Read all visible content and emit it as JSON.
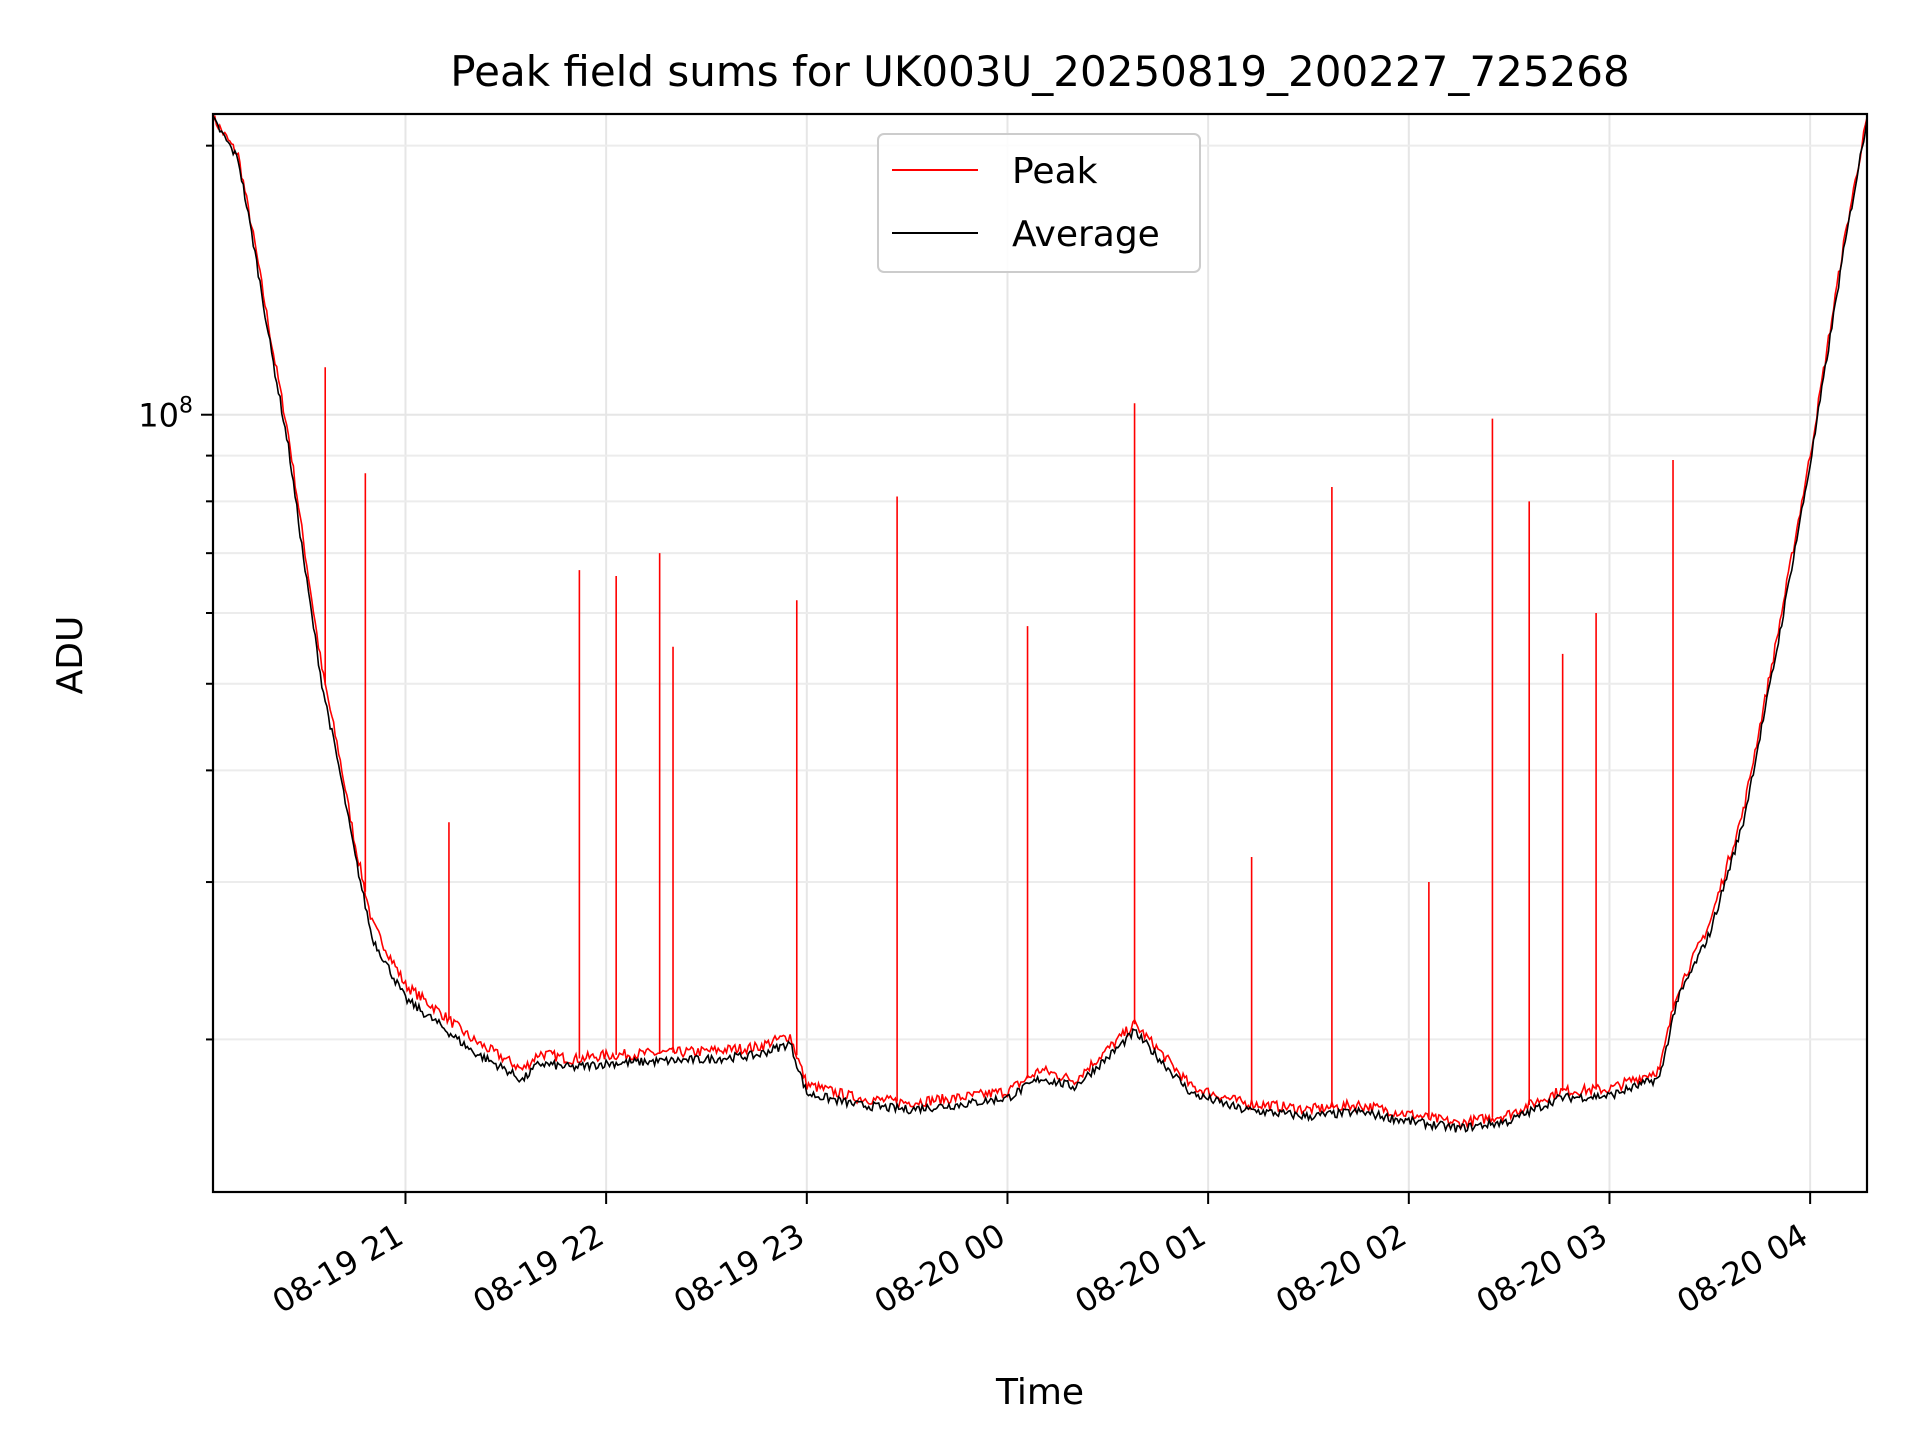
{
  "chart_data": {
    "type": "line",
    "title": "Peak field sums for UK003U_20250819_200227_725268",
    "xlabel": "Time",
    "ylabel": "ADU",
    "yscale": "log",
    "ylim": [
      13500000,
      217000000
    ],
    "xlim": [
      "2025-08-19 20:02:27",
      "2025-08-20 04:17:00"
    ],
    "x_ticks": [
      "08-19 21",
      "08-19 22",
      "08-19 23",
      "08-20 00",
      "08-20 01",
      "08-20 02",
      "08-20 03",
      "08-20 04"
    ],
    "y_ticks": [
      {
        "value": 100000000,
        "label": "10^8"
      }
    ],
    "grid": true,
    "legend_placement": "top-center",
    "colors": {
      "Peak": "#ff0000",
      "Average": "#000000"
    },
    "series": [
      {
        "name": "Peak",
        "x": [
          "2025-08-19 20:02:27",
          "2025-08-19 20:10",
          "2025-08-19 20:15",
          "2025-08-19 20:20",
          "2025-08-19 20:25",
          "2025-08-19 20:30",
          "2025-08-19 20:35",
          "2025-08-19 20:40",
          "2025-08-19 20:45",
          "2025-08-19 20:50",
          "2025-08-19 21:00",
          "2025-08-19 21:10",
          "2025-08-19 21:20",
          "2025-08-19 21:30",
          "2025-08-19 21:35",
          "2025-08-19 21:40",
          "2025-08-19 21:50",
          "2025-08-19 22:00",
          "2025-08-19 22:15",
          "2025-08-19 22:30",
          "2025-08-19 22:45",
          "2025-08-19 22:55",
          "2025-08-19 23:00",
          "2025-08-19 23:15",
          "2025-08-19 23:30",
          "2025-08-19 23:45",
          "2025-08-20 00:00",
          "2025-08-20 00:10",
          "2025-08-20 00:20",
          "2025-08-20 00:30",
          "2025-08-20 00:38",
          "2025-08-20 00:45",
          "2025-08-20 00:55",
          "2025-08-20 01:10",
          "2025-08-20 01:30",
          "2025-08-20 01:45",
          "2025-08-20 02:00",
          "2025-08-20 02:15",
          "2025-08-20 02:30",
          "2025-08-20 02:45",
          "2025-08-20 03:00",
          "2025-08-20 03:15",
          "2025-08-20 03:20",
          "2025-08-20 03:30",
          "2025-08-20 03:40",
          "2025-08-20 03:50",
          "2025-08-20 04:00",
          "2025-08-20 04:10",
          "2025-08-20 04:17"
        ],
        "values": [
          215000000,
          195000000,
          155000000,
          120000000,
          95000000,
          70000000,
          52000000,
          42000000,
          33000000,
          27000000,
          23000000,
          21500000,
          20000000,
          19000000,
          18500000,
          19300000,
          19000000,
          19200000,
          19300000,
          19400000,
          19600000,
          20200000,
          17800000,
          17200000,
          17000000,
          17200000,
          17500000,
          18500000,
          18000000,
          19500000,
          20800000,
          19500000,
          17700000,
          17000000,
          16700000,
          16900000,
          16500000,
          16100000,
          16500000,
          17500000,
          17600000,
          18500000,
          22500000,
          27000000,
          36000000,
          56000000,
          90000000,
          155000000,
          215000000
        ],
        "spikes": [
          {
            "x": "2025-08-19 20:36",
            "value": 113000000
          },
          {
            "x": "2025-08-19 20:48",
            "value": 86000000
          },
          {
            "x": "2025-08-19 21:13",
            "value": 35000000
          },
          {
            "x": "2025-08-19 21:52",
            "value": 67000000
          },
          {
            "x": "2025-08-19 22:03",
            "value": 66000000
          },
          {
            "x": "2025-08-19 22:16",
            "value": 70000000
          },
          {
            "x": "2025-08-19 22:20",
            "value": 55000000
          },
          {
            "x": "2025-08-19 22:57",
            "value": 62000000
          },
          {
            "x": "2025-08-19 23:27",
            "value": 81000000
          },
          {
            "x": "2025-08-20 00:06",
            "value": 58000000
          },
          {
            "x": "2025-08-20 00:38",
            "value": 103000000
          },
          {
            "x": "2025-08-20 01:13",
            "value": 32000000
          },
          {
            "x": "2025-08-20 01:37",
            "value": 83000000
          },
          {
            "x": "2025-08-20 02:06",
            "value": 30000000
          },
          {
            "x": "2025-08-20 02:25",
            "value": 99000000
          },
          {
            "x": "2025-08-20 02:36",
            "value": 80000000
          },
          {
            "x": "2025-08-20 02:46",
            "value": 54000000
          },
          {
            "x": "2025-08-20 02:56",
            "value": 60000000
          },
          {
            "x": "2025-08-20 03:19",
            "value": 89000000
          }
        ]
      },
      {
        "name": "Average",
        "x": [
          "2025-08-19 20:02:27",
          "2025-08-19 20:10",
          "2025-08-19 20:15",
          "2025-08-19 20:20",
          "2025-08-19 20:25",
          "2025-08-19 20:30",
          "2025-08-19 20:35",
          "2025-08-19 20:40",
          "2025-08-19 20:45",
          "2025-08-19 20:50",
          "2025-08-19 21:00",
          "2025-08-19 21:10",
          "2025-08-19 21:20",
          "2025-08-19 21:30",
          "2025-08-19 21:35",
          "2025-08-19 21:40",
          "2025-08-19 21:50",
          "2025-08-19 22:00",
          "2025-08-19 22:15",
          "2025-08-19 22:30",
          "2025-08-19 22:45",
          "2025-08-19 22:55",
          "2025-08-19 23:00",
          "2025-08-19 23:15",
          "2025-08-19 23:30",
          "2025-08-19 23:45",
          "2025-08-20 00:00",
          "2025-08-20 00:10",
          "2025-08-20 00:20",
          "2025-08-20 00:30",
          "2025-08-20 00:38",
          "2025-08-20 00:45",
          "2025-08-20 00:55",
          "2025-08-20 01:10",
          "2025-08-20 01:30",
          "2025-08-20 01:45",
          "2025-08-20 02:00",
          "2025-08-20 02:15",
          "2025-08-20 02:30",
          "2025-08-20 02:45",
          "2025-08-20 03:00",
          "2025-08-20 03:15",
          "2025-08-20 03:20",
          "2025-08-20 03:30",
          "2025-08-20 03:40",
          "2025-08-20 03:50",
          "2025-08-20 04:00",
          "2025-08-20 04:10",
          "2025-08-20 04:17"
        ],
        "values": [
          214000000,
          193000000,
          152000000,
          117000000,
          92000000,
          67000000,
          50000000,
          40500000,
          32000000,
          26000000,
          22200000,
          20800000,
          19400000,
          18500000,
          18000000,
          18800000,
          18600000,
          18800000,
          18900000,
          19000000,
          19200000,
          19800000,
          17400000,
          16900000,
          16700000,
          16900000,
          17200000,
          18100000,
          17700000,
          19100000,
          20400000,
          19100000,
          17400000,
          16700000,
          16400000,
          16600000,
          16200000,
          15900000,
          16200000,
          17200000,
          17300000,
          18100000,
          22000000,
          26300000,
          35000000,
          54500000,
          88000000,
          152000000,
          214000000
        ]
      }
    ]
  }
}
